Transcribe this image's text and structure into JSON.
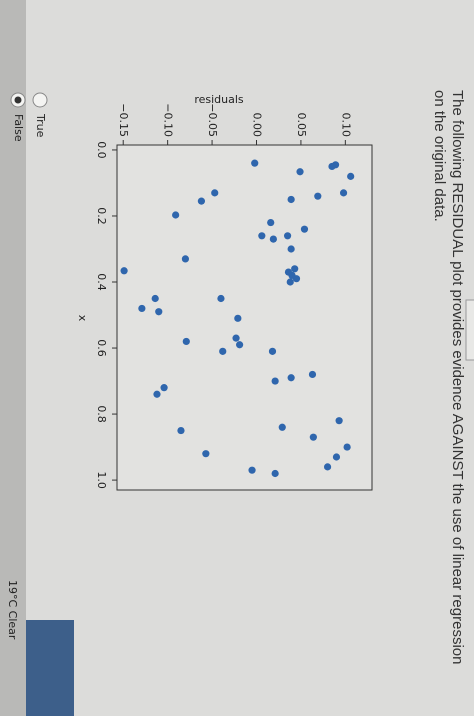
{
  "question": {
    "text": "The following RESIDUAL plot provides evidence AGAINST the use of linear regression on the original data."
  },
  "chart_data": {
    "type": "scatter",
    "xlabel": "x",
    "ylabel": "residuals",
    "color": "#2f66ad",
    "xlim": [
      -0.015,
      1.03
    ],
    "ylim": [
      -0.157,
      0.13
    ],
    "xticks": [
      {
        "value": 0,
        "label": "0.0"
      },
      0.2,
      0.4,
      0.6,
      0.8,
      {
        "value": 1,
        "label": "1.0"
      }
    ],
    "yticks": [
      {
        "value": -0.15,
        "label": "−0.15"
      },
      {
        "value": -0.1,
        "label": "−0.10"
      },
      {
        "value": -0.05,
        "label": "−0.05"
      },
      {
        "value": 0,
        "label": "0.00"
      },
      {
        "value": 0.05,
        "label": "0.05"
      },
      {
        "value": 0.1,
        "label": "0.10"
      }
    ],
    "x": [
      0.08,
      0.045,
      0.05,
      0.13,
      0.066,
      0.04,
      0.14,
      0.15,
      0.22,
      0.27,
      0.26,
      0.26,
      0.24,
      0.13,
      0.155,
      0.197,
      0.33,
      0.366,
      0.45,
      0.48,
      0.49,
      0.3,
      0.39,
      0.38,
      0.37,
      0.4,
      0.36,
      0.45,
      0.51,
      0.57,
      0.59,
      0.61,
      0.58,
      0.61,
      0.7,
      0.69,
      0.68,
      0.72,
      0.74,
      0.85,
      0.92,
      0.97,
      0.98,
      0.84,
      0.87,
      0.82,
      0.96,
      0.93,
      0.9
    ],
    "y": [
      0.106,
      0.089,
      0.085,
      0.098,
      0.049,
      -0.002,
      0.069,
      0.039,
      0.016,
      0.019,
      0.006,
      0.035,
      0.054,
      -0.047,
      -0.062,
      -0.091,
      -0.08,
      -0.149,
      -0.114,
      -0.129,
      -0.11,
      0.039,
      0.045,
      0.04,
      0.036,
      0.038,
      0.043,
      -0.04,
      -0.021,
      -0.023,
      -0.019,
      -0.038,
      -0.079,
      0.018,
      0.021,
      0.039,
      0.063,
      -0.104,
      -0.112,
      -0.085,
      -0.057,
      -0.005,
      0.021,
      0.029,
      0.064,
      0.093,
      0.08,
      0.09,
      0.102
    ]
  },
  "options": [
    {
      "label": "True",
      "selected": false
    },
    {
      "label": "False",
      "selected": true
    }
  ],
  "taskbar": {
    "weather": "19°C Clear"
  }
}
